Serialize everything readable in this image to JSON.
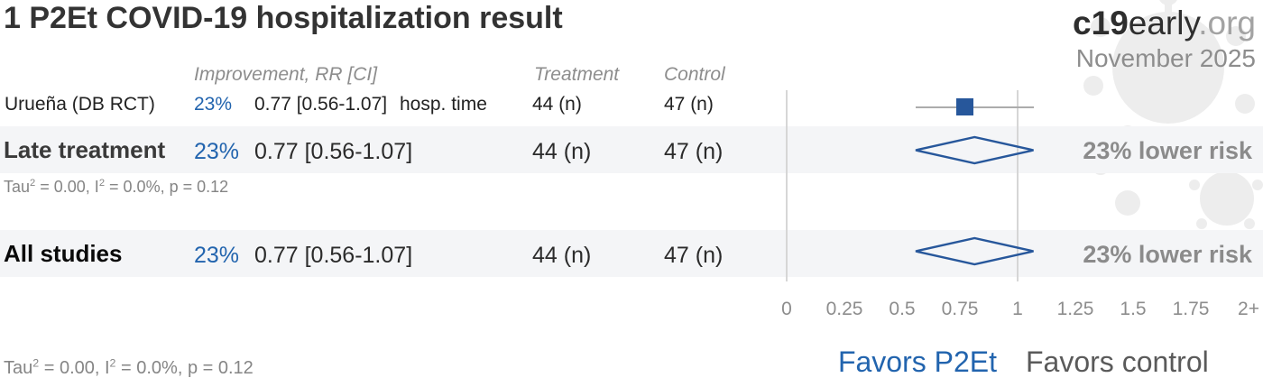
{
  "header": {
    "title": "1 P2Et COVID-19 hospitalization result",
    "brand_bold": "c19",
    "brand_mid": "early",
    "brand_suffix": ".org",
    "date": "November 2025"
  },
  "table": {
    "col_improvement": "Improvement, RR [CI]",
    "col_treatment": "Treatment",
    "col_control": "Control",
    "study": {
      "label": "Urueña (DB RCT)",
      "improvement": "23%",
      "rr_ci": "0.77 [0.56-1.07]",
      "outcome": "hosp. time",
      "treatment_n": "44 (n)",
      "control_n": "47 (n)"
    },
    "late": {
      "label": "Late treatment",
      "improvement": "23%",
      "rr_ci": "0.77 [0.56-1.07]",
      "treatment_n": "44 (n)",
      "control_n": "47 (n)",
      "effect": "23% lower risk"
    },
    "all": {
      "label": "All studies",
      "improvement": "23%",
      "rr_ci": "0.77 [0.56-1.07]",
      "treatment_n": "44 (n)",
      "control_n": "47 (n)",
      "effect": "23% lower risk"
    },
    "late_note": {
      "p1": "Tau",
      "s1": "2",
      "p2": " = 0.00, I",
      "s2": "2",
      "p3": " = 0.0%, p = 0.12"
    },
    "all_note": {
      "p1": "Tau",
      "s1": "2",
      "p2": " = 0.00, I",
      "s2": "2",
      "p3": " = 0.0%, p = 0.12"
    }
  },
  "axis": {
    "favors_left": "Favors P2Et",
    "favors_right": "Favors control"
  },
  "colors": {
    "accent_blue": "#2264ae",
    "marker_blue": "#27579b",
    "grid_gray": "#d6d6d6",
    "ci_gray": "#acacac"
  },
  "chart_data": {
    "type": "forest",
    "title": "1 P2Et COVID-19 hospitalization result",
    "x_axis": {
      "ticks": [
        0,
        0.25,
        0.5,
        0.75,
        1,
        1.25,
        1.5,
        1.75,
        2
      ],
      "tick_labels": [
        "0",
        "0.25",
        "0.5",
        "0.75",
        "1",
        "1.25",
        "1.5",
        "1.75",
        "2+"
      ],
      "range": [
        0,
        2
      ],
      "reference_lines": [
        0,
        1
      ]
    },
    "rows": [
      {
        "label": "Urueña (DB RCT)",
        "marker": "square",
        "rr": 0.77,
        "ci_low": 0.56,
        "ci_high": 1.07,
        "improvement_pct": 23,
        "outcome": "hosp. time",
        "treatment_n": 44,
        "control_n": 47
      },
      {
        "label": "Late treatment",
        "marker": "diamond",
        "rr": 0.77,
        "ci_low": 0.56,
        "ci_high": 1.07,
        "improvement_pct": 23,
        "treatment_n": 44,
        "control_n": 47,
        "tau2": 0.0,
        "i2_pct": 0.0,
        "p": 0.12,
        "effect_label": "23% lower risk"
      },
      {
        "label": "All studies",
        "marker": "diamond",
        "rr": 0.77,
        "ci_low": 0.56,
        "ci_high": 1.07,
        "improvement_pct": 23,
        "treatment_n": 44,
        "control_n": 47,
        "tau2": 0.0,
        "i2_pct": 0.0,
        "p": 0.12,
        "effect_label": "23% lower risk"
      }
    ]
  }
}
